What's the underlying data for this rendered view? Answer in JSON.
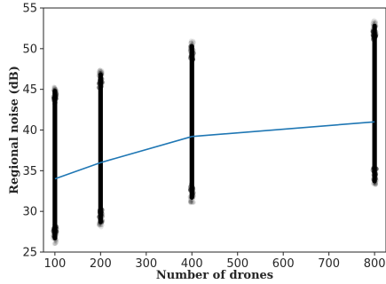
{
  "chart_data": {
    "type": "scatter",
    "xlabel": "Number of drones",
    "ylabel": "Regional noise (dB)",
    "xlim": [
      75,
      825
    ],
    "ylim": [
      25,
      55
    ],
    "xticks": [
      100,
      200,
      300,
      400,
      500,
      600,
      700,
      800
    ],
    "yticks": [
      25,
      30,
      35,
      40,
      45,
      50,
      55
    ],
    "grid": false,
    "series": [
      {
        "kind": "scatter-distribution",
        "color": "#000000",
        "groups": [
          {
            "x": 100,
            "min": 26,
            "max": 45.5
          },
          {
            "x": 200,
            "min": 28,
            "max": 47.5
          },
          {
            "x": 400,
            "min": 31,
            "max": 51
          },
          {
            "x": 800,
            "min": 33,
            "max": 53.5
          }
        ]
      },
      {
        "kind": "line",
        "color": "#1f77b4",
        "x": [
          100,
          200,
          400,
          800
        ],
        "y": [
          34,
          36,
          39.2,
          41
        ]
      }
    ]
  }
}
